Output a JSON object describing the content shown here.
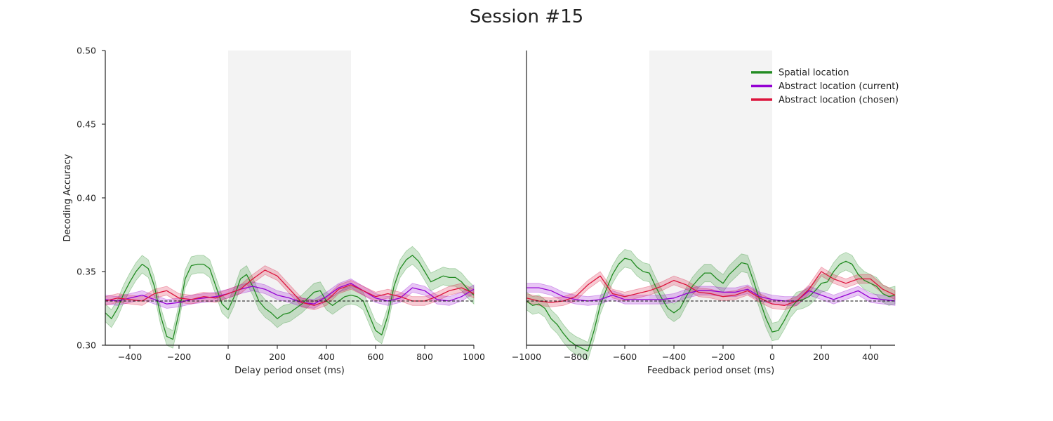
{
  "figure": {
    "title": "Session #15"
  },
  "chart_data": [
    {
      "type": "line",
      "panel": "left",
      "xlabel": "Delay period onset (ms)",
      "ylabel": "Decoding Accuracy",
      "xlim": [
        -500,
        1000
      ],
      "ylim": [
        0.3,
        0.5
      ],
      "xticks": [
        -400,
        -200,
        0,
        200,
        400,
        600,
        800,
        1000
      ],
      "xtick_labels": [
        "−400",
        "−200",
        "0",
        "200",
        "400",
        "600",
        "800",
        "1000"
      ],
      "yticks": [
        0.3,
        0.35,
        0.4,
        0.45,
        0.5
      ],
      "ytick_labels": [
        "0.30",
        "0.35",
        "0.40",
        "0.45",
        "0.50"
      ],
      "shaded_region": [
        0,
        500
      ],
      "chance_level": 0.33,
      "series": [
        {
          "key": "spatial",
          "color": "#228b22",
          "band": 0.006,
          "x": [
            -500,
            -475,
            -450,
            -425,
            -400,
            -375,
            -350,
            -325,
            -300,
            -275,
            -250,
            -225,
            -200,
            -175,
            -150,
            -125,
            -100,
            -75,
            -50,
            -25,
            0,
            25,
            50,
            75,
            100,
            125,
            150,
            175,
            200,
            225,
            250,
            275,
            300,
            325,
            350,
            375,
            400,
            425,
            450,
            475,
            500,
            525,
            550,
            575,
            600,
            625,
            650,
            675,
            700,
            725,
            750,
            775,
            800,
            825,
            850,
            875,
            900,
            925,
            950,
            975,
            1000
          ],
          "y": [
            0.322,
            0.318,
            0.325,
            0.335,
            0.343,
            0.35,
            0.355,
            0.352,
            0.34,
            0.32,
            0.306,
            0.304,
            0.322,
            0.345,
            0.354,
            0.355,
            0.355,
            0.352,
            0.34,
            0.328,
            0.324,
            0.333,
            0.345,
            0.348,
            0.34,
            0.33,
            0.325,
            0.322,
            0.318,
            0.321,
            0.322,
            0.325,
            0.328,
            0.332,
            0.336,
            0.337,
            0.33,
            0.327,
            0.33,
            0.333,
            0.334,
            0.333,
            0.33,
            0.32,
            0.31,
            0.307,
            0.32,
            0.34,
            0.352,
            0.358,
            0.361,
            0.357,
            0.35,
            0.343,
            0.345,
            0.347,
            0.346,
            0.346,
            0.343,
            0.338,
            0.334
          ]
        },
        {
          "key": "abstract_current",
          "color": "#9400d3",
          "band": 0.003,
          "x": [
            -500,
            -450,
            -400,
            -350,
            -300,
            -250,
            -200,
            -150,
            -100,
            -50,
            0,
            50,
            100,
            150,
            200,
            250,
            300,
            350,
            400,
            450,
            500,
            550,
            600,
            650,
            700,
            750,
            800,
            850,
            900,
            950,
            1000
          ],
          "y": [
            0.331,
            0.33,
            0.332,
            0.334,
            0.331,
            0.328,
            0.329,
            0.331,
            0.332,
            0.333,
            0.335,
            0.338,
            0.34,
            0.338,
            0.334,
            0.332,
            0.329,
            0.328,
            0.333,
            0.339,
            0.342,
            0.337,
            0.332,
            0.33,
            0.332,
            0.339,
            0.337,
            0.331,
            0.33,
            0.333,
            0.338
          ]
        },
        {
          "key": "abstract_chosen",
          "color": "#dc143c",
          "band": 0.003,
          "x": [
            -500,
            -450,
            -400,
            -350,
            -300,
            -250,
            -200,
            -150,
            -100,
            -50,
            0,
            50,
            100,
            150,
            200,
            250,
            300,
            350,
            400,
            450,
            500,
            550,
            600,
            650,
            700,
            750,
            800,
            850,
            900,
            950,
            1000
          ],
          "y": [
            0.33,
            0.332,
            0.331,
            0.33,
            0.335,
            0.337,
            0.332,
            0.331,
            0.333,
            0.332,
            0.335,
            0.338,
            0.345,
            0.351,
            0.347,
            0.338,
            0.329,
            0.327,
            0.33,
            0.338,
            0.341,
            0.337,
            0.333,
            0.335,
            0.333,
            0.33,
            0.33,
            0.333,
            0.337,
            0.339,
            0.335
          ]
        }
      ]
    },
    {
      "type": "line",
      "panel": "right",
      "xlabel": "Feedback period onset (ms)",
      "ylabel": "",
      "xlim": [
        -1000,
        500
      ],
      "ylim": [
        0.3,
        0.5
      ],
      "xticks": [
        -1000,
        -800,
        -600,
        -400,
        -200,
        0,
        200,
        400
      ],
      "xtick_labels": [
        "−1000",
        "−800",
        "−600",
        "−400",
        "−200",
        "0",
        "200",
        "400"
      ],
      "shaded_region": [
        -500,
        0
      ],
      "chance_level": 0.33,
      "legend": {
        "position": "upper-right",
        "entries": [
          {
            "label": "Spatial location",
            "color": "#228b22"
          },
          {
            "label": "Abstract location (current)",
            "color": "#9400d3"
          },
          {
            "label": "Abstract location (chosen)",
            "color": "#dc143c"
          }
        ]
      },
      "series": [
        {
          "key": "spatial",
          "color": "#228b22",
          "band": 0.006,
          "x": [
            -1000,
            -975,
            -950,
            -925,
            -900,
            -875,
            -850,
            -825,
            -800,
            -775,
            -750,
            -725,
            -700,
            -675,
            -650,
            -625,
            -600,
            -575,
            -550,
            -525,
            -500,
            -475,
            -450,
            -425,
            -400,
            -375,
            -350,
            -325,
            -300,
            -275,
            -250,
            -225,
            -200,
            -175,
            -150,
            -125,
            -100,
            -75,
            -50,
            -25,
            0,
            25,
            50,
            75,
            100,
            125,
            150,
            175,
            200,
            225,
            250,
            275,
            300,
            325,
            350,
            375,
            400,
            425,
            450,
            475,
            500
          ],
          "y": [
            0.33,
            0.327,
            0.328,
            0.325,
            0.318,
            0.314,
            0.308,
            0.303,
            0.3,
            0.298,
            0.296,
            0.31,
            0.327,
            0.338,
            0.348,
            0.355,
            0.359,
            0.358,
            0.353,
            0.35,
            0.349,
            0.34,
            0.332,
            0.325,
            0.322,
            0.325,
            0.333,
            0.34,
            0.345,
            0.349,
            0.349,
            0.345,
            0.342,
            0.348,
            0.352,
            0.356,
            0.355,
            0.343,
            0.33,
            0.318,
            0.309,
            0.31,
            0.317,
            0.325,
            0.33,
            0.331,
            0.333,
            0.337,
            0.342,
            0.343,
            0.35,
            0.355,
            0.357,
            0.355,
            0.348,
            0.344,
            0.342,
            0.34,
            0.335,
            0.333,
            0.334
          ]
        },
        {
          "key": "abstract_current",
          "color": "#9400d3",
          "band": 0.003,
          "x": [
            -1000,
            -950,
            -900,
            -850,
            -800,
            -750,
            -700,
            -650,
            -600,
            -550,
            -500,
            -450,
            -400,
            -350,
            -300,
            -250,
            -200,
            -150,
            -100,
            -50,
            0,
            50,
            100,
            150,
            200,
            250,
            300,
            350,
            400,
            450,
            500
          ],
          "y": [
            0.339,
            0.339,
            0.337,
            0.333,
            0.331,
            0.33,
            0.331,
            0.334,
            0.331,
            0.331,
            0.331,
            0.331,
            0.332,
            0.335,
            0.337,
            0.337,
            0.336,
            0.336,
            0.338,
            0.333,
            0.331,
            0.33,
            0.33,
            0.337,
            0.334,
            0.331,
            0.334,
            0.337,
            0.332,
            0.331,
            0.33
          ]
        },
        {
          "key": "abstract_chosen",
          "color": "#dc143c",
          "band": 0.003,
          "x": [
            -1000,
            -950,
            -900,
            -850,
            -800,
            -750,
            -700,
            -650,
            -600,
            -550,
            -500,
            -450,
            -400,
            -350,
            -300,
            -250,
            -200,
            -150,
            -100,
            -50,
            0,
            50,
            100,
            150,
            200,
            250,
            300,
            350,
            400,
            450,
            500
          ],
          "y": [
            0.332,
            0.33,
            0.329,
            0.33,
            0.333,
            0.341,
            0.347,
            0.335,
            0.333,
            0.335,
            0.337,
            0.34,
            0.344,
            0.341,
            0.336,
            0.335,
            0.333,
            0.334,
            0.337,
            0.332,
            0.328,
            0.327,
            0.33,
            0.338,
            0.35,
            0.345,
            0.342,
            0.345,
            0.345,
            0.338,
            0.334
          ]
        }
      ]
    }
  ]
}
